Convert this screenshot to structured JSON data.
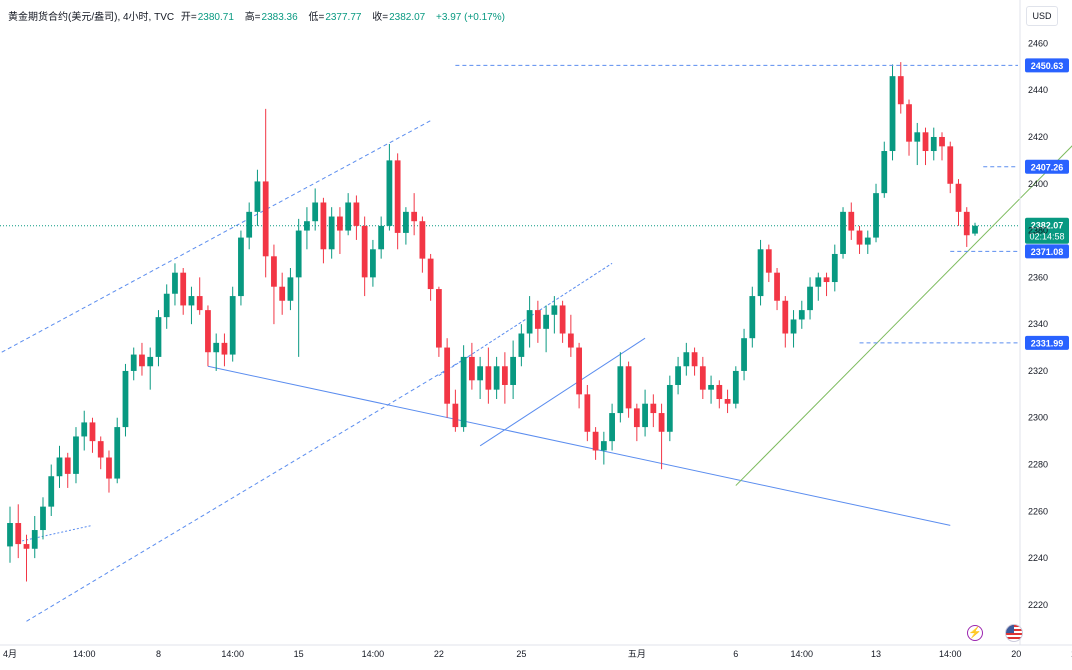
{
  "header": {
    "symbol": "黄金期货合约(美元/盎司), 4小时, TVC",
    "open_label": "开=",
    "open": "2380.71",
    "high_label": "高=",
    "high": "2383.36",
    "low_label": "低=",
    "low": "2377.77",
    "close_label": "收=",
    "close": "2382.07",
    "change": "+3.97 (+0.17%)"
  },
  "currency": "USD",
  "colors": {
    "up": "#089981",
    "down": "#f23645",
    "trend": "#5b8def",
    "green_trend": "#7dbb5e",
    "label_blue": "#2962ff"
  },
  "chart_data": {
    "type": "candlestick",
    "y_range": [
      2205,
      2470
    ],
    "y_ticks": [
      2220,
      2240,
      2260,
      2280,
      2300,
      2320,
      2340,
      2360,
      2380,
      2400,
      2420,
      2440,
      2460
    ],
    "x_labels": [
      "4月",
      "14:00",
      "8",
      "14:00",
      "15",
      "14:00",
      "22",
      "25",
      "五月",
      "6",
      "14:00",
      "13",
      "14:00",
      "20",
      "14:00"
    ],
    "current_price": "2382.07",
    "countdown": "02:14:58",
    "price_levels": [
      "2450.63",
      "2407.26",
      "2371.08",
      "2331.99"
    ],
    "candles": [
      [
        2245,
        2262,
        2238,
        2255
      ],
      [
        2255,
        2263,
        2240,
        2246
      ],
      [
        2246,
        2250,
        2230,
        2244
      ],
      [
        2244,
        2258,
        2240,
        2252
      ],
      [
        2252,
        2266,
        2248,
        2262
      ],
      [
        2262,
        2280,
        2258,
        2275
      ],
      [
        2275,
        2288,
        2270,
        2283
      ],
      [
        2283,
        2285,
        2270,
        2276
      ],
      [
        2276,
        2296,
        2272,
        2292
      ],
      [
        2292,
        2303,
        2286,
        2298
      ],
      [
        2298,
        2300,
        2285,
        2290
      ],
      [
        2290,
        2292,
        2278,
        2283
      ],
      [
        2283,
        2286,
        2268,
        2274
      ],
      [
        2274,
        2300,
        2272,
        2296
      ],
      [
        2296,
        2323,
        2292,
        2320
      ],
      [
        2320,
        2330,
        2316,
        2327
      ],
      [
        2327,
        2332,
        2318,
        2322
      ],
      [
        2322,
        2330,
        2312,
        2326
      ],
      [
        2326,
        2346,
        2322,
        2343
      ],
      [
        2343,
        2357,
        2338,
        2353
      ],
      [
        2353,
        2366,
        2348,
        2362
      ],
      [
        2362,
        2364,
        2344,
        2348
      ],
      [
        2348,
        2356,
        2340,
        2352
      ],
      [
        2352,
        2360,
        2344,
        2346
      ],
      [
        2346,
        2348,
        2322,
        2328
      ],
      [
        2328,
        2336,
        2320,
        2332
      ],
      [
        2332,
        2336,
        2322,
        2327
      ],
      [
        2327,
        2356,
        2324,
        2352
      ],
      [
        2352,
        2380,
        2348,
        2377
      ],
      [
        2377,
        2392,
        2372,
        2388
      ],
      [
        2388,
        2406,
        2382,
        2401
      ],
      [
        2401,
        2432,
        2360,
        2369
      ],
      [
        2369,
        2374,
        2340,
        2356
      ],
      [
        2356,
        2362,
        2344,
        2350
      ],
      [
        2350,
        2364,
        2346,
        2360
      ],
      [
        2360,
        2385,
        2326,
        2380
      ],
      [
        2380,
        2390,
        2372,
        2384
      ],
      [
        2384,
        2398,
        2380,
        2392
      ],
      [
        2392,
        2394,
        2366,
        2372
      ],
      [
        2372,
        2390,
        2368,
        2386
      ],
      [
        2386,
        2390,
        2370,
        2380
      ],
      [
        2380,
        2396,
        2378,
        2392
      ],
      [
        2392,
        2395,
        2376,
        2382
      ],
      [
        2382,
        2386,
        2352,
        2360
      ],
      [
        2360,
        2376,
        2356,
        2372
      ],
      [
        2372,
        2386,
        2368,
        2382
      ],
      [
        2382,
        2417,
        2380,
        2410
      ],
      [
        2410,
        2413,
        2372,
        2379
      ],
      [
        2379,
        2390,
        2374,
        2388
      ],
      [
        2388,
        2396,
        2378,
        2384
      ],
      [
        2384,
        2386,
        2362,
        2368
      ],
      [
        2368,
        2370,
        2350,
        2355
      ],
      [
        2355,
        2356,
        2326,
        2330
      ],
      [
        2330,
        2334,
        2300,
        2306
      ],
      [
        2306,
        2312,
        2294,
        2296
      ],
      [
        2296,
        2331,
        2294,
        2326
      ],
      [
        2326,
        2332,
        2312,
        2316
      ],
      [
        2316,
        2326,
        2308,
        2322
      ],
      [
        2322,
        2330,
        2306,
        2312
      ],
      [
        2312,
        2326,
        2308,
        2322
      ],
      [
        2322,
        2328,
        2306,
        2314
      ],
      [
        2314,
        2333,
        2308,
        2326
      ],
      [
        2326,
        2340,
        2322,
        2336
      ],
      [
        2336,
        2352,
        2330,
        2346
      ],
      [
        2346,
        2350,
        2332,
        2338
      ],
      [
        2338,
        2348,
        2328,
        2344
      ],
      [
        2344,
        2352,
        2336,
        2348
      ],
      [
        2348,
        2350,
        2332,
        2336
      ],
      [
        2336,
        2344,
        2326,
        2330
      ],
      [
        2330,
        2332,
        2304,
        2310
      ],
      [
        2310,
        2314,
        2290,
        2294
      ],
      [
        2294,
        2296,
        2282,
        2286
      ],
      [
        2286,
        2294,
        2280,
        2290
      ],
      [
        2290,
        2306,
        2286,
        2302
      ],
      [
        2302,
        2328,
        2298,
        2322
      ],
      [
        2322,
        2324,
        2300,
        2304
      ],
      [
        2304,
        2306,
        2290,
        2296
      ],
      [
        2296,
        2312,
        2292,
        2306
      ],
      [
        2306,
        2310,
        2296,
        2302
      ],
      [
        2302,
        2306,
        2278,
        2294
      ],
      [
        2294,
        2318,
        2290,
        2314
      ],
      [
        2314,
        2326,
        2310,
        2322
      ],
      [
        2322,
        2332,
        2318,
        2328
      ],
      [
        2328,
        2330,
        2318,
        2322
      ],
      [
        2322,
        2326,
        2308,
        2312
      ],
      [
        2312,
        2318,
        2306,
        2314
      ],
      [
        2314,
        2316,
        2304,
        2308
      ],
      [
        2308,
        2312,
        2302,
        2306
      ],
      [
        2306,
        2322,
        2304,
        2320
      ],
      [
        2320,
        2338,
        2316,
        2334
      ],
      [
        2334,
        2356,
        2330,
        2352
      ],
      [
        2352,
        2376,
        2348,
        2372
      ],
      [
        2372,
        2374,
        2358,
        2362
      ],
      [
        2362,
        2364,
        2346,
        2350
      ],
      [
        2350,
        2352,
        2330,
        2336
      ],
      [
        2336,
        2346,
        2330,
        2342
      ],
      [
        2342,
        2350,
        2338,
        2346
      ],
      [
        2346,
        2360,
        2342,
        2356
      ],
      [
        2356,
        2362,
        2350,
        2360
      ],
      [
        2360,
        2362,
        2352,
        2358
      ],
      [
        2358,
        2374,
        2354,
        2370
      ],
      [
        2370,
        2390,
        2368,
        2388
      ],
      [
        2388,
        2392,
        2376,
        2380
      ],
      [
        2380,
        2382,
        2370,
        2374
      ],
      [
        2374,
        2380,
        2370,
        2377
      ],
      [
        2377,
        2400,
        2375,
        2396
      ],
      [
        2396,
        2418,
        2394,
        2414
      ],
      [
        2414,
        2451,
        2410,
        2446
      ],
      [
        2446,
        2452,
        2430,
        2434
      ],
      [
        2434,
        2436,
        2412,
        2418
      ],
      [
        2418,
        2426,
        2408,
        2422
      ],
      [
        2422,
        2424,
        2408,
        2414
      ],
      [
        2414,
        2424,
        2410,
        2420
      ],
      [
        2420,
        2422,
        2410,
        2416
      ],
      [
        2416,
        2418,
        2396,
        2400
      ],
      [
        2400,
        2402,
        2382,
        2388
      ],
      [
        2388,
        2390,
        2373,
        2378
      ],
      [
        2378.71,
        2383.36,
        2377.77,
        2382.07
      ]
    ]
  }
}
